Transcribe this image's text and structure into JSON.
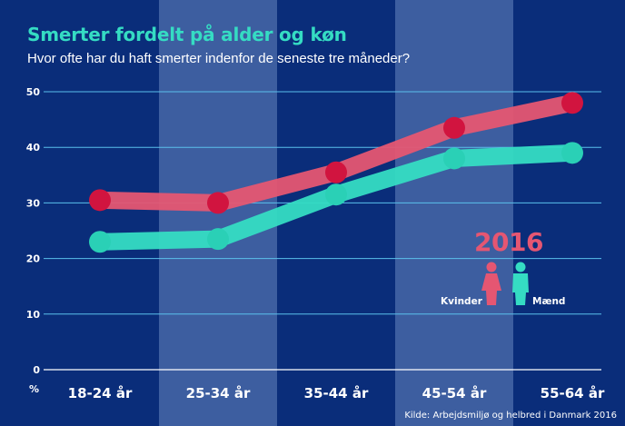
{
  "title": "Smerter fordelt på alder og køn",
  "subtitle": "Hvor ofte har du haft smerter indenfor de seneste tre måneder?",
  "source": "Kilde: Arbejdsmiljø og helbred i Danmark 2016",
  "legend": {
    "year": "2016",
    "female_label": "Kvinder",
    "male_label": "Mænd"
  },
  "colors": {
    "background": "#0a2d7a",
    "band": "#3d5ea0",
    "grid": "#5bc0ec",
    "women": "#e55672",
    "men": "#35dcc3",
    "women_marker": "#d1143f",
    "men_marker": "#2ad0b6"
  },
  "chart_data": {
    "type": "line",
    "title": "Smerter fordelt på alder og køn",
    "subtitle": "Hvor ofte har du haft smerter indenfor de seneste tre måneder?",
    "categories": [
      "18-24 år",
      "25-34 år",
      "35-44 år",
      "45-54 år",
      "55-64 år"
    ],
    "series": [
      {
        "name": "Kvinder",
        "values": [
          30.5,
          30,
          35.5,
          43.5,
          48
        ]
      },
      {
        "name": "Mænd",
        "values": [
          23,
          23.5,
          31.5,
          38,
          39
        ]
      }
    ],
    "ylabel": "%",
    "yticks": [
      0,
      10,
      20,
      30,
      40,
      50
    ],
    "ylim": [
      0,
      50
    ],
    "grid": true
  }
}
